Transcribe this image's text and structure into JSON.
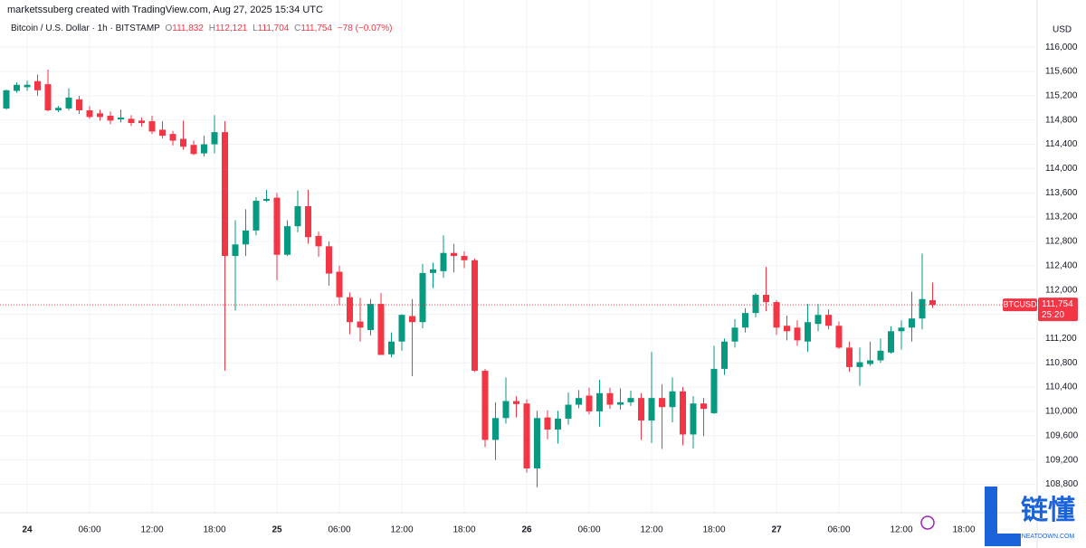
{
  "chart_data": {
    "type": "candlestick",
    "credit": "marketssuberg created with TradingView.com, Aug 27, 2025 15:34 UTC",
    "legend": {
      "symbol": "Bitcoin / U.S. Dollar · 1h · BITSTAMP",
      "ohlc": [
        {
          "key": "O",
          "value": "111,832"
        },
        {
          "key": "H",
          "value": "112,121"
        },
        {
          "key": "L",
          "value": "111,704"
        },
        {
          "key": "C",
          "value": "111,754"
        }
      ],
      "change": "−78 (−0.07%)"
    },
    "currency": "USD",
    "symbol_tag": "BTCUSD",
    "last_price": {
      "value": 111754,
      "label": "111,754"
    },
    "countdown": "25:20",
    "watermark": {
      "text": "链懂",
      "url": "NEATDOWN.COM"
    },
    "up_color": "#089981",
    "down_color": "#f23645",
    "open": [
      114990,
      115280,
      115340,
      115440,
      115390,
      114960,
      114990,
      115140,
      114960,
      114910,
      114870,
      114810,
      114820,
      114790,
      114780,
      114640,
      114570,
      114490,
      114390,
      114250,
      114400,
      114600,
      112560,
      112750,
      112980,
      113470,
      113520,
      112580,
      113050,
      113380,
      112890,
      112720,
      112300,
      111880,
      111480,
      111340,
      111770,
      110940,
      111150,
      111570,
      111470,
      112280,
      112310,
      112610,
      112560,
      112490,
      110670,
      109530,
      109890,
      110170,
      110130,
      109060,
      109900,
      109700,
      109880,
      110110,
      110260,
      110000,
      110300,
      110110,
      110150,
      110220,
      109850,
      110220,
      110070,
      110330,
      109620,
      110130,
      109970,
      110700,
      111150,
      111380,
      111620,
      111920,
      111800,
      111410,
      111380,
      111150,
      111440,
      111590,
      111410,
      111050,
      110730,
      110780,
      110840,
      110970,
      111320,
      111380,
      111530,
      111832
    ],
    "high": [
      115300,
      115420,
      115450,
      115550,
      115630,
      115030,
      115320,
      115200,
      115030,
      114970,
      114940,
      114970,
      114880,
      114840,
      114870,
      114780,
      114620,
      114790,
      114460,
      114540,
      114880,
      114780,
      113150,
      113330,
      113530,
      113650,
      113600,
      113150,
      113640,
      113650,
      112960,
      112800,
      112400,
      111960,
      111870,
      111850,
      111950,
      111300,
      111600,
      111850,
      112430,
      112450,
      112900,
      112760,
      112640,
      112520,
      110700,
      110150,
      110560,
      110250,
      110200,
      110010,
      110020,
      110010,
      110310,
      110350,
      110390,
      110520,
      110390,
      110380,
      110340,
      110300,
      110980,
      110450,
      110560,
      110400,
      110250,
      110220,
      111080,
      111200,
      111520,
      111700,
      111950,
      112380,
      111830,
      111580,
      111500,
      111770,
      111770,
      111680,
      111480,
      111150,
      111050,
      111150,
      111200,
      111400,
      111500,
      111970,
      112600,
      112121
    ],
    "low": [
      114970,
      115250,
      115280,
      115200,
      114940,
      114930,
      114960,
      114900,
      114820,
      114790,
      114730,
      114760,
      114700,
      114690,
      114570,
      114500,
      114380,
      114310,
      114220,
      114200,
      114250,
      110670,
      111660,
      112560,
      112900,
      113450,
      112160,
      112560,
      112950,
      112760,
      112550,
      112070,
      111750,
      111270,
      111150,
      111250,
      110930,
      110890,
      111000,
      110580,
      111370,
      112030,
      112200,
      112290,
      112360,
      110650,
      109410,
      109200,
      109800,
      109900,
      108990,
      108750,
      109540,
      109470,
      109780,
      110050,
      109950,
      109750,
      110040,
      110030,
      110090,
      109530,
      109480,
      109380,
      109820,
      109440,
      109390,
      109590,
      109960,
      110600,
      111050,
      111300,
      111550,
      111650,
      111260,
      111170,
      111080,
      110980,
      111320,
      111350,
      111030,
      110650,
      110420,
      110750,
      110800,
      110950,
      111020,
      111150,
      111350,
      111704
    ],
    "close": [
      115290,
      115380,
      115380,
      115290,
      114960,
      115000,
      115170,
      114960,
      114850,
      114850,
      114790,
      114840,
      114750,
      114750,
      114610,
      114540,
      114460,
      114360,
      114240,
      114400,
      114600,
      112560,
      112750,
      112980,
      113470,
      113500,
      112580,
      113050,
      113380,
      112870,
      112720,
      112270,
      111880,
      111470,
      111380,
      111770,
      110930,
      111150,
      111590,
      111470,
      112280,
      112340,
      112610,
      112560,
      112490,
      110670,
      109530,
      109890,
      110170,
      110120,
      109060,
      109890,
      109700,
      109880,
      110110,
      110220,
      110000,
      110300,
      110110,
      110150,
      110220,
      109850,
      110220,
      110070,
      110330,
      109620,
      110130,
      110040,
      110700,
      111150,
      111380,
      111620,
      111920,
      111800,
      111380,
      111320,
      111170,
      111470,
      111590,
      111410,
      111050,
      110730,
      110810,
      110840,
      111000,
      111320,
      111380,
      111530,
      111850,
      111754
    ],
    "xticks": [
      {
        "value": 2,
        "label": "24"
      },
      {
        "value": 8,
        "label": "06:00"
      },
      {
        "value": 14,
        "label": "12:00"
      },
      {
        "value": 20,
        "label": "18:00"
      },
      {
        "value": 26,
        "label": "25"
      },
      {
        "value": 32,
        "label": "06:00"
      },
      {
        "value": 38,
        "label": "12:00"
      },
      {
        "value": 44,
        "label": "18:00"
      },
      {
        "value": 50,
        "label": "26"
      },
      {
        "value": 56,
        "label": "06:00"
      },
      {
        "value": 62,
        "label": "12:00"
      },
      {
        "value": 68,
        "label": "18:00"
      },
      {
        "value": 74,
        "label": "27"
      },
      {
        "value": 80,
        "label": "06:00"
      },
      {
        "value": 86,
        "label": "12:00"
      },
      {
        "value": 92,
        "label": "18:00"
      }
    ],
    "ylim": [
      108360,
      116330
    ],
    "yticks": [
      {
        "value": 108800,
        "label": "108,800"
      },
      {
        "value": 109200,
        "label": "109,200"
      },
      {
        "value": 109600,
        "label": "109,600"
      },
      {
        "value": 110000,
        "label": "110,000"
      },
      {
        "value": 110400,
        "label": "110,400"
      },
      {
        "value": 110800,
        "label": "110,800"
      },
      {
        "value": 111200,
        "label": "111,200"
      },
      {
        "value": 111600,
        "label": "111,600"
      },
      {
        "value": 112000,
        "label": "112,000"
      },
      {
        "value": 112400,
        "label": "112,400"
      },
      {
        "value": 112800,
        "label": "112,800"
      },
      {
        "value": 113200,
        "label": "113,200"
      },
      {
        "value": 113600,
        "label": "113,600"
      },
      {
        "value": 114000,
        "label": "114,000"
      },
      {
        "value": 114400,
        "label": "114,400"
      },
      {
        "value": 114800,
        "label": "114,800"
      },
      {
        "value": 115200,
        "label": "115,200"
      },
      {
        "value": 115600,
        "label": "115,600"
      },
      {
        "value": 116000,
        "label": "116,000"
      }
    ],
    "grid": true
  }
}
